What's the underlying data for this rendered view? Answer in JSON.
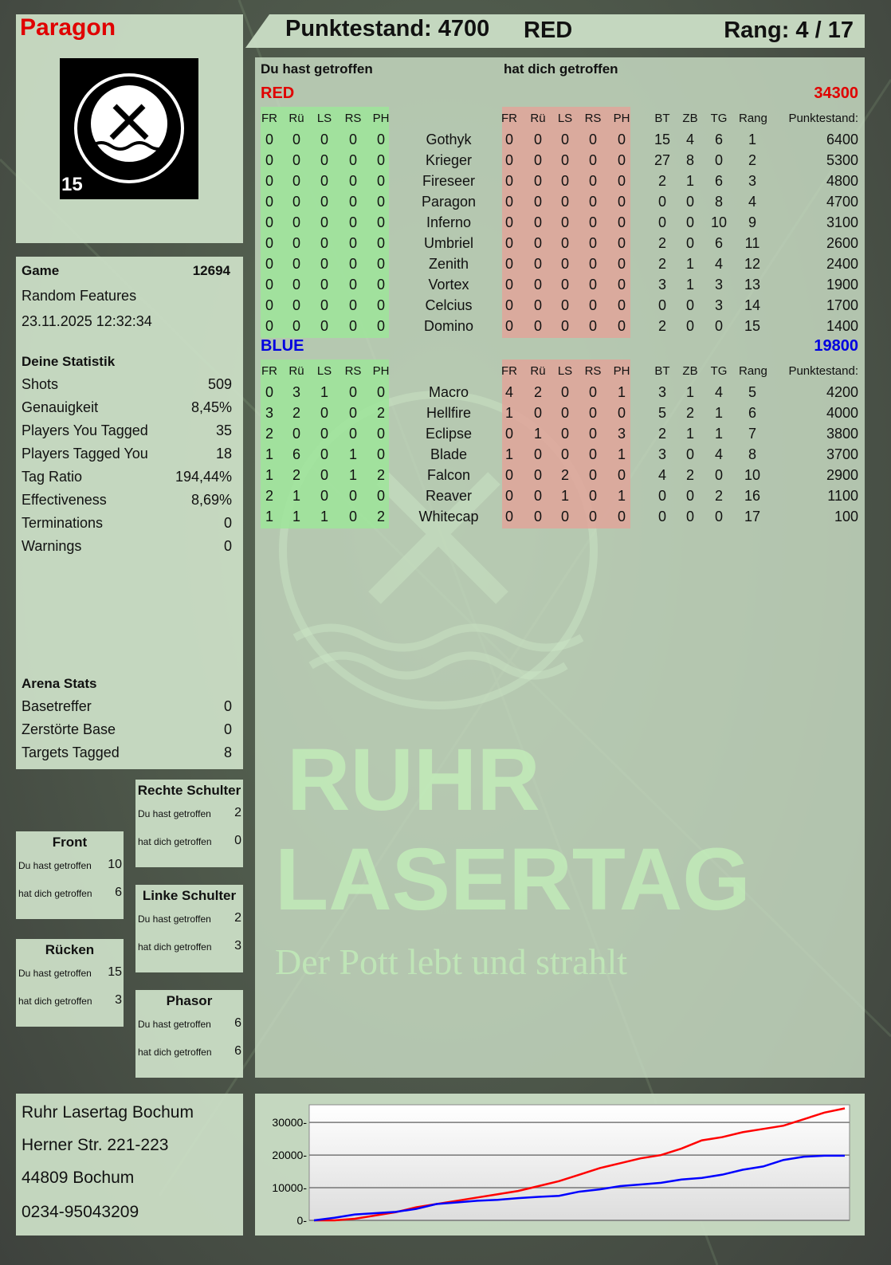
{
  "player": {
    "name": "Paragon",
    "logo_text": "RUHR LASERTAG",
    "logo_number": "15"
  },
  "header": {
    "score": "Punktestand: 4700",
    "team": "RED",
    "rank": "Rang: 4 / 17"
  },
  "game": {
    "label": "Game",
    "id": "12694",
    "mode": "Random Features",
    "datetime": "23.11.2025 12:32:34"
  },
  "stats": {
    "title": "Deine Statistik",
    "items": [
      {
        "k": "Shots",
        "v": "509"
      },
      {
        "k": "Genauigkeit",
        "v": "8,45%"
      },
      {
        "k": "Players You Tagged",
        "v": "35"
      },
      {
        "k": "Players Tagged You",
        "v": "18"
      },
      {
        "k": "Tag Ratio",
        "v": "194,44%"
      },
      {
        "k": "Effectiveness",
        "v": "8,69%"
      },
      {
        "k": "Terminations",
        "v": "0"
      },
      {
        "k": "Warnings",
        "v": "0"
      }
    ]
  },
  "arena": {
    "title": "Arena Stats",
    "items": [
      {
        "k": "Basetreffer",
        "v": "0"
      },
      {
        "k": "Zerstörte Base",
        "v": "0"
      },
      {
        "k": "Targets Tagged",
        "v": "8"
      }
    ]
  },
  "zones": {
    "hit_label": "Du hast getroffen",
    "got_label": "hat dich getroffen",
    "items": [
      {
        "name": "Rechte Schulter",
        "hit": "2",
        "got": "0"
      },
      {
        "name": "Front",
        "hit": "10",
        "got": "6"
      },
      {
        "name": "Linke Schulter",
        "hit": "2",
        "got": "3"
      },
      {
        "name": "Rücken",
        "hit": "15",
        "got": "3"
      },
      {
        "name": "Phasor",
        "hit": "6",
        "got": "6"
      }
    ]
  },
  "address": {
    "lines": [
      "Ruhr Lasertag Bochum",
      "Herner Str. 221-223",
      "44809 Bochum",
      "0234-95043209"
    ]
  },
  "table": {
    "you_hit": "Du hast getroffen",
    "hit_you": "hat dich getroffen",
    "columns": [
      "FR",
      "Rü",
      "LS",
      "RS",
      "PH",
      "",
      "FR",
      "Rü",
      "LS",
      "RS",
      "PH",
      "BT",
      "ZB",
      "TG",
      "Rang",
      "Punktestand:"
    ],
    "teams": [
      {
        "name": "RED",
        "total": "34300",
        "color": "#e00000",
        "rows": [
          [
            "0",
            "0",
            "0",
            "0",
            "0",
            "Gothyk",
            "0",
            "0",
            "0",
            "0",
            "0",
            "15",
            "4",
            "6",
            "1",
            "6400"
          ],
          [
            "0",
            "0",
            "0",
            "0",
            "0",
            "Krieger",
            "0",
            "0",
            "0",
            "0",
            "0",
            "27",
            "8",
            "0",
            "2",
            "5300"
          ],
          [
            "0",
            "0",
            "0",
            "0",
            "0",
            "Fireseer",
            "0",
            "0",
            "0",
            "0",
            "0",
            "2",
            "1",
            "6",
            "3",
            "4800"
          ],
          [
            "0",
            "0",
            "0",
            "0",
            "0",
            "Paragon",
            "0",
            "0",
            "0",
            "0",
            "0",
            "0",
            "0",
            "8",
            "4",
            "4700"
          ],
          [
            "0",
            "0",
            "0",
            "0",
            "0",
            "Inferno",
            "0",
            "0",
            "0",
            "0",
            "0",
            "0",
            "0",
            "10",
            "9",
            "3100"
          ],
          [
            "0",
            "0",
            "0",
            "0",
            "0",
            "Umbriel",
            "0",
            "0",
            "0",
            "0",
            "0",
            "2",
            "0",
            "6",
            "11",
            "2600"
          ],
          [
            "0",
            "0",
            "0",
            "0",
            "0",
            "Zenith",
            "0",
            "0",
            "0",
            "0",
            "0",
            "2",
            "1",
            "4",
            "12",
            "2400"
          ],
          [
            "0",
            "0",
            "0",
            "0",
            "0",
            "Vortex",
            "0",
            "0",
            "0",
            "0",
            "0",
            "3",
            "1",
            "3",
            "13",
            "1900"
          ],
          [
            "0",
            "0",
            "0",
            "0",
            "0",
            "Celcius",
            "0",
            "0",
            "0",
            "0",
            "0",
            "0",
            "0",
            "3",
            "14",
            "1700"
          ],
          [
            "0",
            "0",
            "0",
            "0",
            "0",
            "Domino",
            "0",
            "0",
            "0",
            "0",
            "0",
            "2",
            "0",
            "0",
            "15",
            "1400"
          ]
        ]
      },
      {
        "name": "BLUE",
        "total": "19800",
        "color": "#0000e0",
        "rows": [
          [
            "0",
            "3",
            "1",
            "0",
            "0",
            "Macro",
            "4",
            "2",
            "0",
            "0",
            "1",
            "3",
            "1",
            "4",
            "5",
            "4200"
          ],
          [
            "3",
            "2",
            "0",
            "0",
            "2",
            "Hellfire",
            "1",
            "0",
            "0",
            "0",
            "0",
            "5",
            "2",
            "1",
            "6",
            "4000"
          ],
          [
            "2",
            "0",
            "0",
            "0",
            "0",
            "Eclipse",
            "0",
            "1",
            "0",
            "0",
            "3",
            "2",
            "1",
            "1",
            "7",
            "3800"
          ],
          [
            "1",
            "6",
            "0",
            "1",
            "0",
            "Blade",
            "1",
            "0",
            "0",
            "0",
            "1",
            "3",
            "0",
            "4",
            "8",
            "3700"
          ],
          [
            "1",
            "2",
            "0",
            "1",
            "2",
            "Falcon",
            "0",
            "0",
            "2",
            "0",
            "0",
            "4",
            "2",
            "0",
            "10",
            "2900"
          ],
          [
            "2",
            "1",
            "0",
            "0",
            "0",
            "Reaver",
            "0",
            "0",
            "1",
            "0",
            "1",
            "0",
            "0",
            "2",
            "16",
            "1100"
          ],
          [
            "1",
            "1",
            "1",
            "0",
            "2",
            "Whitecap",
            "0",
            "0",
            "0",
            "0",
            "0",
            "0",
            "0",
            "0",
            "17",
            "100"
          ]
        ]
      }
    ]
  },
  "watermark": {
    "line1": "RUHR",
    "line2": "LASERTAG",
    "slogan": "Der Pott lebt und strahlt"
  },
  "chart_data": {
    "type": "line",
    "ylim": [
      0,
      35400
    ],
    "yticks": [
      0,
      10000,
      20000,
      30000
    ],
    "grid": true,
    "series": [
      {
        "color": "#ff0000",
        "values": [
          0,
          0,
          500,
          1500,
          2500,
          4000,
          5000,
          6000,
          7000,
          8000,
          9000,
          10500,
          12000,
          14000,
          16000,
          17500,
          19000,
          20000,
          22000,
          24500,
          25500,
          27000,
          28000,
          29000,
          31000,
          33000,
          34300
        ]
      },
      {
        "color": "#0000ff",
        "values": [
          0,
          800,
          1800,
          2200,
          2600,
          3500,
          5000,
          5500,
          6000,
          6300,
          6800,
          7200,
          7500,
          8800,
          9500,
          10500,
          11000,
          11500,
          12500,
          13000,
          14000,
          15500,
          16500,
          18500,
          19500,
          19800,
          19800
        ]
      }
    ]
  }
}
